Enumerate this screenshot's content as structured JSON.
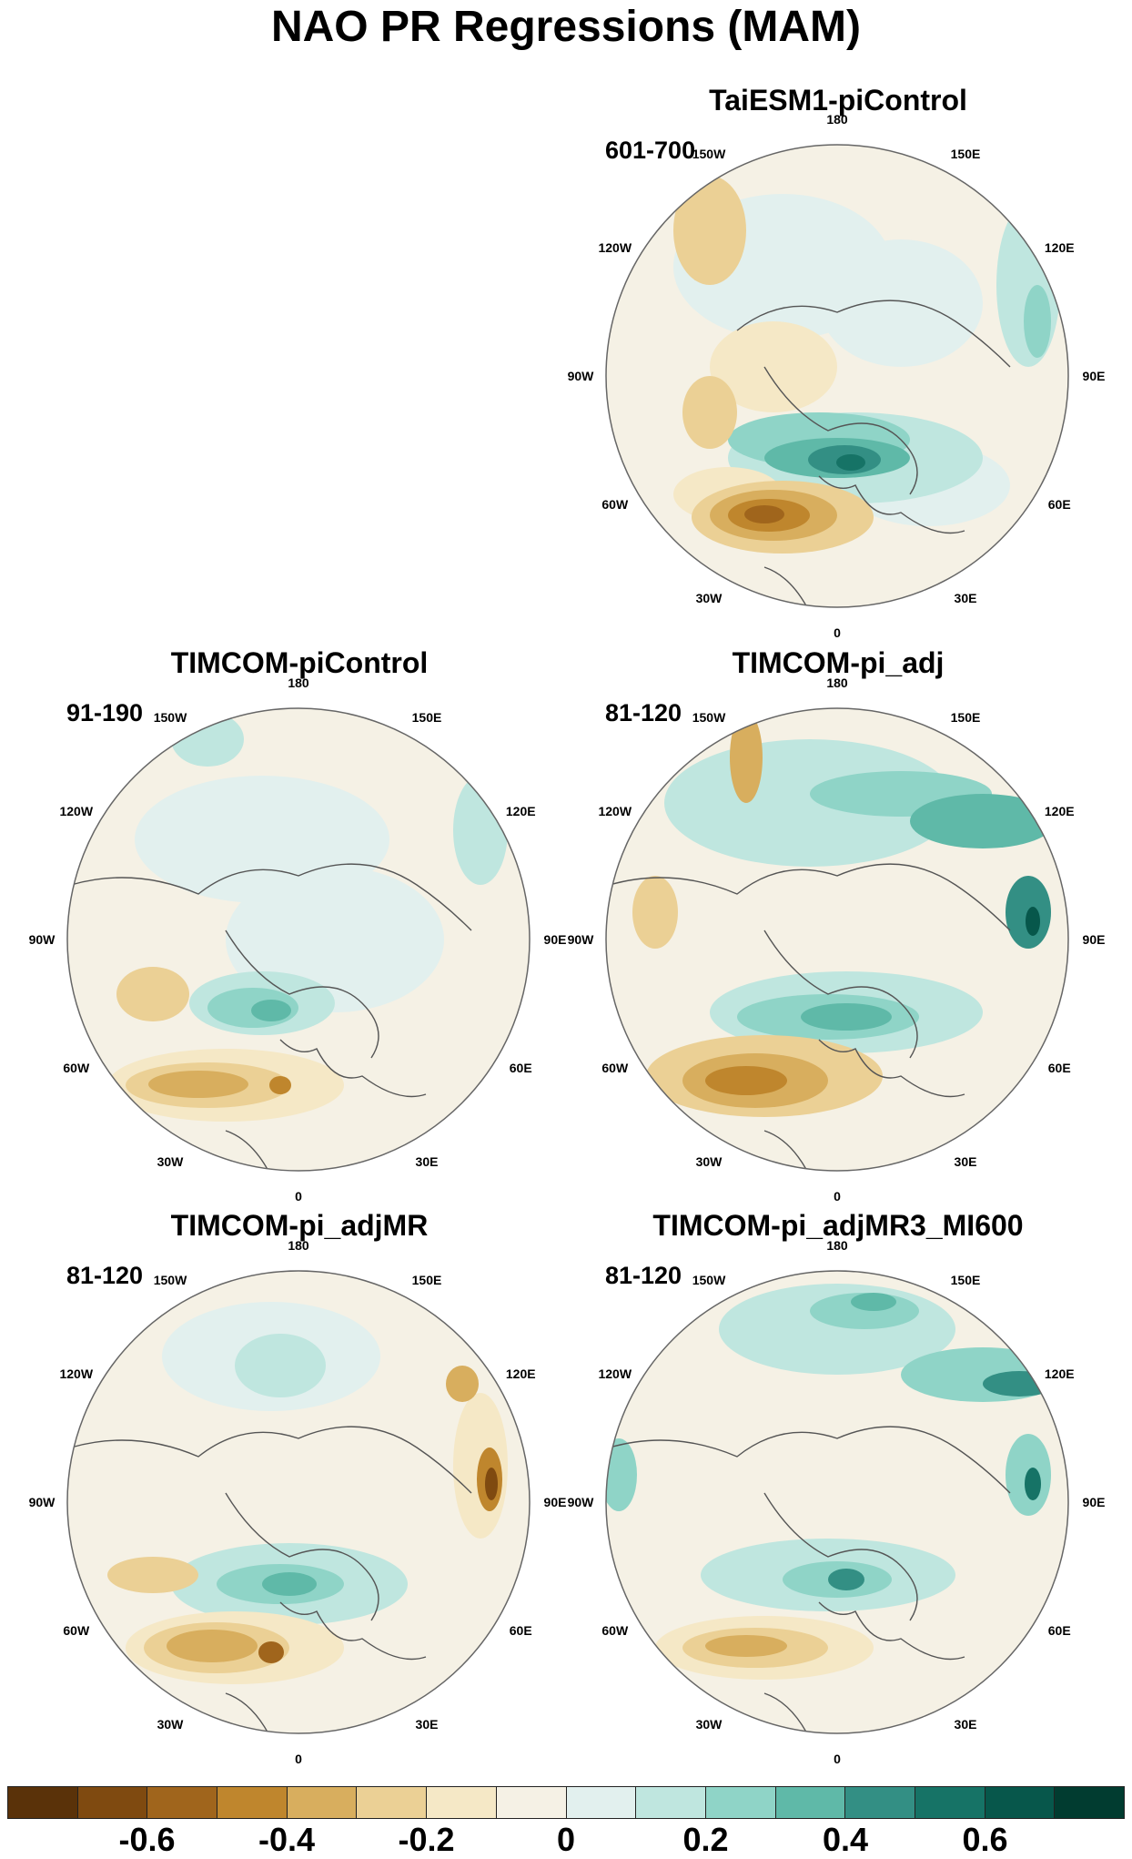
{
  "title": "NAO PR Regressions (MAM)",
  "lon_labels": [
    "180",
    "150E",
    "120E",
    "90E",
    "60E",
    "30E",
    "0",
    "30W",
    "60W",
    "90W",
    "120W",
    "150W"
  ],
  "panels": [
    {
      "id": "taiesm1",
      "title": "TaiESM1-piControl",
      "period": "601-700"
    },
    {
      "id": "timcom-picontrol",
      "title": "TIMCOM-piControl",
      "period": "91-190"
    },
    {
      "id": "timcom-pi-adj",
      "title": "TIMCOM-pi_adj",
      "period": "81-120"
    },
    {
      "id": "timcom-pi-adjmr",
      "title": "TIMCOM-pi_adjMR",
      "period": "81-120"
    },
    {
      "id": "timcom-pi-adjmr3-mi600",
      "title": "TIMCOM-pi_adjMR3_MI600",
      "period": "81-120"
    }
  ],
  "colorbar": {
    "colors": [
      "#5a3209",
      "#7f4a10",
      "#a0651c",
      "#bf862d",
      "#d8ae5e",
      "#ebd095",
      "#f5e8c6",
      "#f5f1e5",
      "#e2f0ee",
      "#bfe6df",
      "#8fd4c7",
      "#5fb9a8",
      "#338f84",
      "#167366",
      "#07574b",
      "#013c30"
    ],
    "ticks": [
      "-0.6",
      "-0.4",
      "-0.2",
      "0",
      "0.2",
      "0.4",
      "0.6"
    ]
  }
}
